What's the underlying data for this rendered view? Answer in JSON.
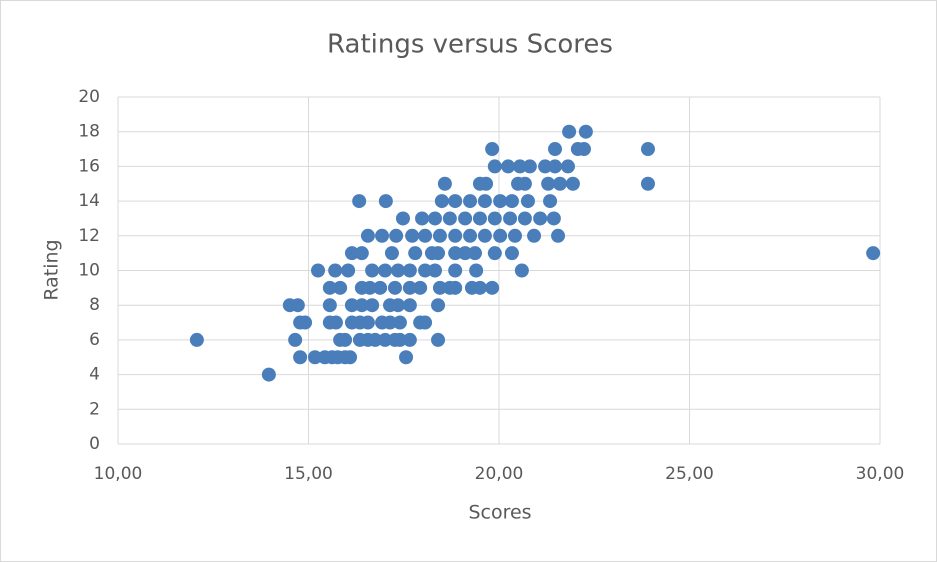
{
  "chart_data": {
    "type": "scatter",
    "title": "Ratings versus Scores",
    "x_label": "Scores",
    "y_label": "Rating",
    "color": "#4a7ebb",
    "grid": true,
    "xlim": [
      10,
      30
    ],
    "xticks": [
      {
        "value": 10,
        "label": "10,00"
      },
      {
        "value": 15,
        "label": "15,00"
      },
      {
        "value": 20,
        "label": "20,00"
      },
      {
        "value": 25,
        "label": "25,00"
      },
      {
        "value": 30,
        "label": "30,00"
      }
    ],
    "ylim": [
      0,
      20
    ],
    "yticks": [
      0,
      2,
      4,
      6,
      8,
      10,
      12,
      14,
      16,
      18,
      20
    ],
    "x": [
      13.96,
      14.78,
      15.17,
      15.43,
      15.62,
      15.77,
      15.96,
      16.09,
      17.56,
      12.07,
      14.65,
      15.83,
      15.96,
      16.35,
      16.56,
      16.75,
      17.01,
      17.27,
      17.4,
      17.66,
      18.4,
      14.78,
      14.91,
      15.56,
      15.72,
      16.14,
      16.35,
      16.56,
      16.93,
      17.14,
      17.4,
      17.93,
      18.06,
      14.51,
      14.72,
      15.56,
      16.14,
      16.4,
      16.67,
      17.14,
      17.35,
      17.66,
      18.4,
      15.56,
      15.83,
      16.4,
      16.61,
      16.88,
      17.27,
      17.66,
      17.93,
      18.45,
      18.71,
      18.85,
      19.29,
      19.5,
      19.82,
      15.25,
      15.7,
      16.04,
      16.67,
      17.01,
      17.35,
      17.66,
      18.06,
      18.32,
      18.85,
      19.4,
      20.6,
      16.14,
      16.4,
      17.19,
      17.8,
      18.24,
      18.4,
      18.85,
      19.11,
      19.37,
      19.89,
      20.34,
      29.82,
      16.56,
      16.93,
      17.3,
      17.72,
      18.06,
      18.45,
      18.85,
      19.24,
      19.63,
      20.03,
      20.42,
      20.92,
      21.55,
      17.48,
      17.98,
      18.32,
      18.71,
      19.11,
      19.5,
      19.89,
      20.29,
      20.68,
      21.08,
      21.44,
      16.33,
      17.03,
      18.5,
      18.85,
      19.24,
      19.63,
      20.03,
      20.34,
      20.76,
      21.34,
      18.58,
      19.5,
      19.66,
      20.5,
      20.68,
      21.29,
      21.6,
      21.94,
      23.91,
      19.89,
      20.24,
      20.55,
      20.81,
      21.21,
      21.47,
      21.81,
      19.82,
      21.47,
      22.07,
      22.23,
      23.91,
      21.84,
      22.28
    ],
    "values": [
      4,
      5,
      5,
      5,
      5,
      5,
      5,
      5,
      5,
      6,
      6,
      6,
      6,
      6,
      6,
      6,
      6,
      6,
      6,
      6,
      6,
      7,
      7,
      7,
      7,
      7,
      7,
      7,
      7,
      7,
      7,
      7,
      7,
      8,
      8,
      8,
      8,
      8,
      8,
      8,
      8,
      8,
      8,
      9,
      9,
      9,
      9,
      9,
      9,
      9,
      9,
      9,
      9,
      9,
      9,
      9,
      9,
      10,
      10,
      10,
      10,
      10,
      10,
      10,
      10,
      10,
      10,
      10,
      10,
      11,
      11,
      11,
      11,
      11,
      11,
      11,
      11,
      11,
      11,
      11,
      11,
      12,
      12,
      12,
      12,
      12,
      12,
      12,
      12,
      12,
      12,
      12,
      12,
      12,
      13,
      13,
      13,
      13,
      13,
      13,
      13,
      13,
      13,
      13,
      13,
      14,
      14,
      14,
      14,
      14,
      14,
      14,
      14,
      14,
      14,
      15,
      15,
      15,
      15,
      15,
      15,
      15,
      15,
      15,
      16,
      16,
      16,
      16,
      16,
      16,
      16,
      17,
      17,
      17,
      17,
      17,
      18,
      18
    ]
  }
}
